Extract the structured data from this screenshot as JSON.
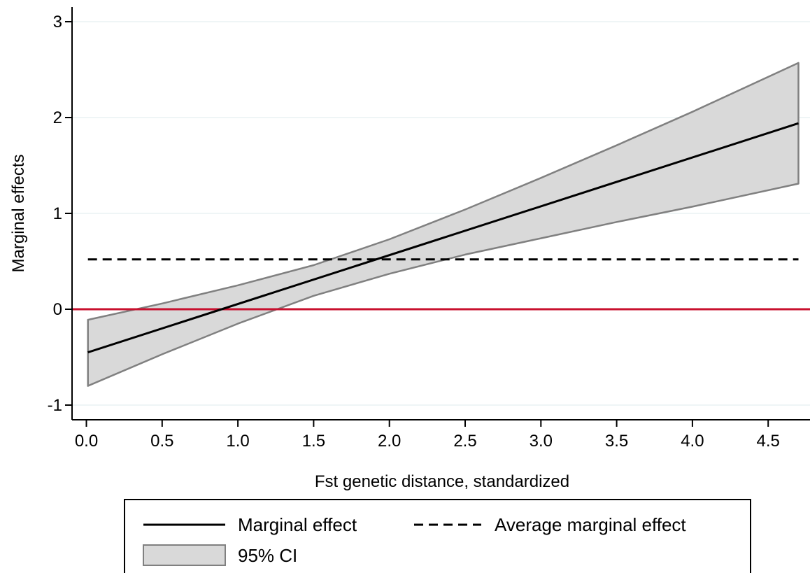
{
  "chart_data": {
    "type": "line",
    "xlabel": "Fst genetic distance, standardized",
    "ylabel": "Marginal effects",
    "xlim": [
      0.0,
      4.7
    ],
    "ylim": [
      -1.1,
      3.1
    ],
    "x_ticks": [
      "0.0",
      "0.5",
      "1.0",
      "1.5",
      "2.0",
      "2.5",
      "3.0",
      "3.5",
      "4.0",
      "4.5"
    ],
    "y_ticks": [
      "-1",
      "0",
      "1",
      "2",
      "3"
    ],
    "grid": "horizontal",
    "series": [
      {
        "name": "Marginal effect",
        "style": "solid",
        "color": "#000000",
        "x": [
          0.01,
          4.7
        ],
        "y": [
          -0.45,
          1.94
        ]
      },
      {
        "name": "Average marginal effect",
        "style": "dashed",
        "color": "#000000",
        "x": [
          0.01,
          4.7
        ],
        "y": [
          0.52,
          0.52
        ]
      }
    ],
    "ci": {
      "name": "95% CI",
      "fill": "#d9d9d9",
      "stroke": "#808080",
      "x": [
        0.01,
        0.5,
        1.0,
        1.5,
        2.0,
        2.5,
        3.0,
        3.5,
        4.0,
        4.7
      ],
      "upper": [
        -0.11,
        0.06,
        0.25,
        0.46,
        0.73,
        1.04,
        1.37,
        1.71,
        2.06,
        2.57
      ],
      "lower": [
        -0.8,
        -0.47,
        -0.15,
        0.14,
        0.37,
        0.57,
        0.74,
        0.91,
        1.07,
        1.31
      ]
    },
    "reference_line": {
      "y": 0,
      "color": "#c8102e"
    },
    "legend": {
      "position": "bottom",
      "entries": [
        "Marginal effect",
        "Average marginal effect",
        "95% CI"
      ]
    }
  }
}
